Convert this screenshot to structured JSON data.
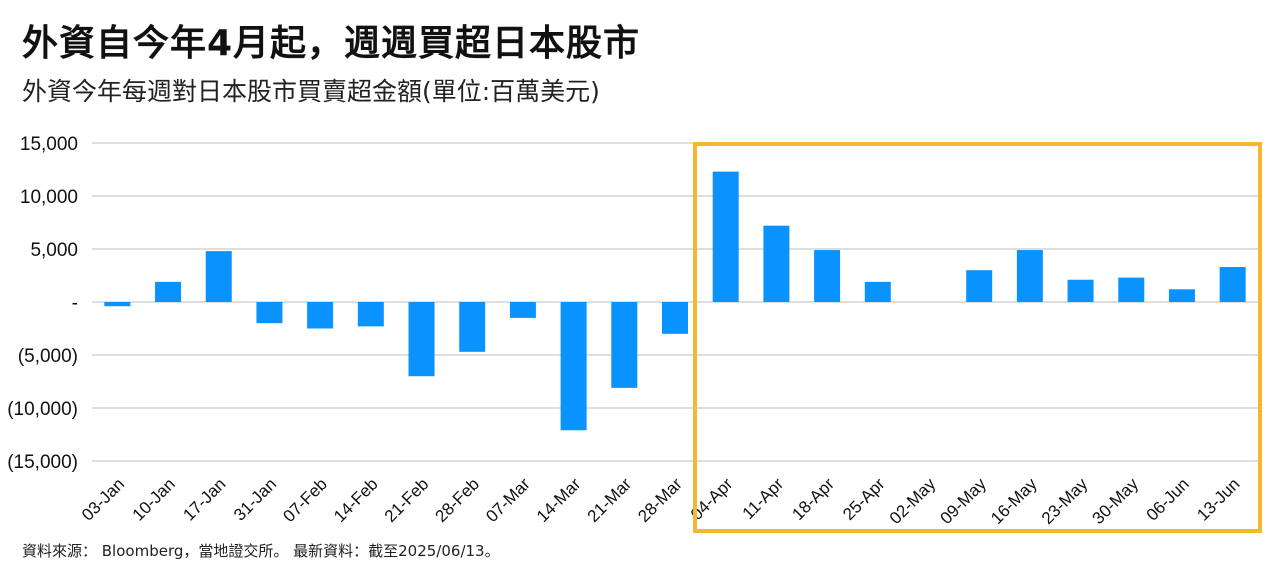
{
  "header": {
    "title": "外資自今年4月起，週週買超日本股市",
    "subtitle": "外資今年每週對日本股市買賣超金額(單位:百萬美元)"
  },
  "footer": {
    "source": "資料來源： Bloomberg，當地證交所。 最新資料：截至2025/06/13。"
  },
  "chart_data": {
    "type": "bar",
    "categories": [
      "03-Jan",
      "10-Jan",
      "17-Jan",
      "31-Jan",
      "07-Feb",
      "14-Feb",
      "21-Feb",
      "28-Feb",
      "07-Mar",
      "14-Mar",
      "21-Mar",
      "28-Mar",
      "04-Apr",
      "11-Apr",
      "18-Apr",
      "25-Apr",
      "02-May",
      "09-May",
      "16-May",
      "23-May",
      "30-May",
      "06-Jun",
      "13-Jun"
    ],
    "values": [
      -400,
      1900,
      4800,
      -2000,
      -2500,
      -2300,
      -7000,
      -4700,
      -1500,
      -12100,
      -8100,
      -3000,
      12300,
      7200,
      4900,
      1900,
      0,
      3000,
      4900,
      2100,
      2300,
      1200,
      3300
    ],
    "ylim": [
      -15000,
      15000
    ],
    "yticks": [
      15000,
      10000,
      5000,
      0,
      -5000,
      -10000,
      -15000
    ],
    "ytick_labels": [
      "15,000",
      "10,000",
      "5,000",
      "-",
      "(5,000)",
      "(10,000)",
      "(15,000)"
    ],
    "grid": true,
    "bar_color": "#0a93ff",
    "highlight": {
      "from": "04-Apr",
      "to": "13-Jun",
      "color": "#f5b731"
    }
  }
}
